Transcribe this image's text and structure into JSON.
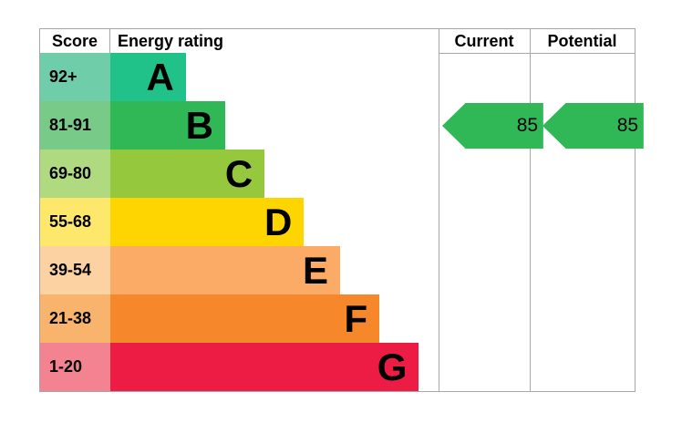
{
  "header": {
    "score": "Score",
    "energy_rating": "Energy rating",
    "current": "Current",
    "potential": "Potential"
  },
  "chart_data": {
    "type": "bar",
    "orientation": "horizontal",
    "title": "EPC Energy rating chart",
    "categories": [
      "A",
      "B",
      "C",
      "D",
      "E",
      "F",
      "G"
    ],
    "score_ranges": [
      "92+",
      "81-91",
      "69-80",
      "55-68",
      "39-54",
      "21-38",
      "1-20"
    ],
    "bar_length_pct": [
      23,
      35,
      47,
      59,
      70,
      82,
      94
    ],
    "bands": [
      {
        "letter": "A",
        "score_range": "92+",
        "length_pct": 23,
        "color": "#21c18a",
        "tint": "#6fcdaa"
      },
      {
        "letter": "B",
        "score_range": "81-91",
        "length_pct": 35,
        "color": "#30b857",
        "tint": "#77ca87"
      },
      {
        "letter": "C",
        "score_range": "69-80",
        "length_pct": 47,
        "color": "#95c83d",
        "tint": "#afda7f"
      },
      {
        "letter": "D",
        "score_range": "55-68",
        "length_pct": 59,
        "color": "#ffd500",
        "tint": "#fde86b"
      },
      {
        "letter": "E",
        "score_range": "39-54",
        "length_pct": 70,
        "color": "#fbab66",
        "tint": "#fdd2a2"
      },
      {
        "letter": "F",
        "score_range": "21-38",
        "length_pct": 82,
        "color": "#f6872a",
        "tint": "#f8b46d"
      },
      {
        "letter": "G",
        "score_range": "1-20",
        "length_pct": 94,
        "color": "#ec1c45",
        "tint": "#f48392"
      }
    ],
    "current": {
      "value": "85",
      "band": "B",
      "color": "#30b857"
    },
    "potential": {
      "value": "85",
      "band": "B",
      "color": "#30b857"
    },
    "separator": "|",
    "border_color": "#a7a7a7",
    "legend_position": "none",
    "grid": false
  }
}
